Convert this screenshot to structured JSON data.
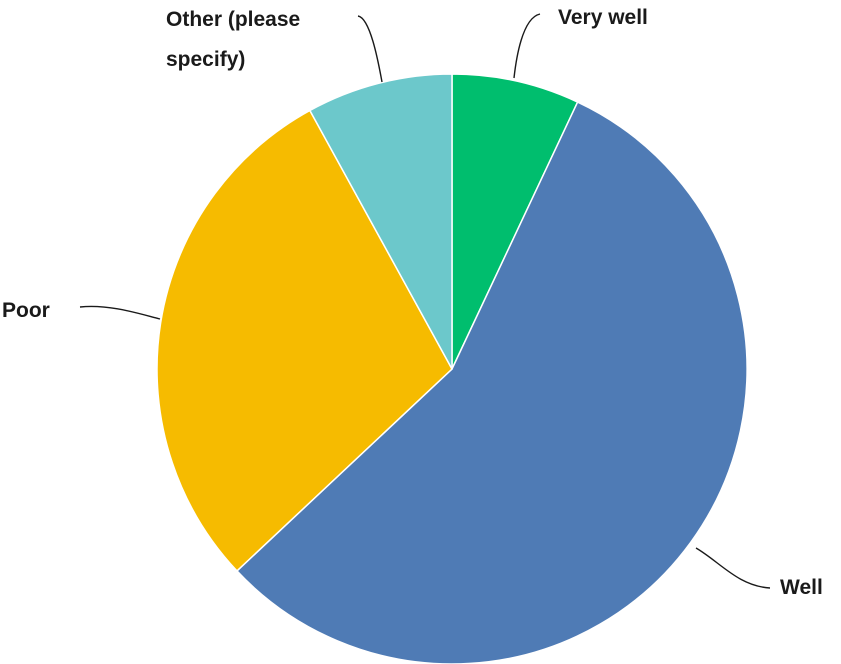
{
  "chart_data": {
    "type": "pie",
    "title": "",
    "slices": [
      {
        "label": "Very well",
        "value": 7,
        "color": "#00be6e"
      },
      {
        "label": "Well",
        "value": 56,
        "color": "#4f7bb5"
      },
      {
        "label": "Poor",
        "value": 29,
        "color": "#f6bb00"
      },
      {
        "label": "Other (please specify)",
        "label_lines": [
          "Other (please",
          "specify)"
        ],
        "value": 8,
        "color": "#6cc8cb"
      }
    ],
    "legend": "none",
    "start_angle": "12 o'clock",
    "direction": "clockwise"
  }
}
